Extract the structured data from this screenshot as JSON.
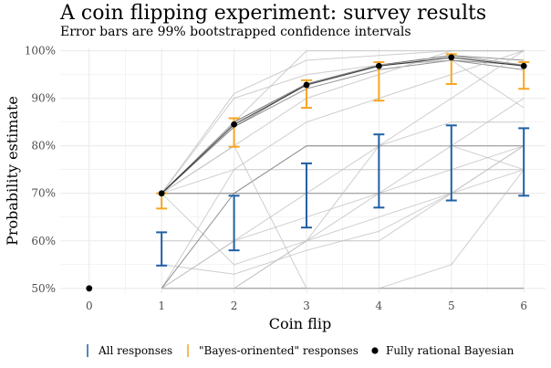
{
  "chart_data": {
    "type": "line",
    "title": "A coin flipping experiment: survey results",
    "subtitle": "Error bars are 99% bootstrapped confidence intervals",
    "xlabel": "Coin flip",
    "ylabel": "Probability estimate",
    "x_ticks": [
      "0",
      "1",
      "2",
      "3",
      "4",
      "5",
      "6"
    ],
    "y_ticks": [
      "50%",
      "60%",
      "70%",
      "80%",
      "90%",
      "100%"
    ],
    "xlim": [
      -0.4,
      6.3
    ],
    "ylim": [
      49,
      100.5
    ],
    "grid": true,
    "legend_position": "bottom",
    "colors": {
      "all_responses": "#1f5fa5",
      "bayes_oriented": "#f5a623",
      "rational": "#000000",
      "individual": "#bdbdbd",
      "individual_dark": "#7f7f7f",
      "grid": "#ebebeb"
    },
    "legend": [
      {
        "label": "All responses",
        "key": "all_responses"
      },
      {
        "label": "\"Bayes-orinented\" responses",
        "key": "bayes_oriented"
      },
      {
        "label": "Fully rational Bayesian",
        "key": "rational"
      }
    ],
    "individual_responses": [
      [
        70,
        85,
        93,
        97,
        99,
        97
      ],
      [
        70,
        84,
        92,
        96,
        98,
        97
      ],
      [
        70,
        85,
        93,
        97,
        99,
        98
      ],
      [
        70,
        84,
        93,
        97,
        98,
        96
      ],
      [
        70,
        91,
        98,
        99,
        100,
        100
      ],
      [
        70,
        90,
        95,
        97,
        98,
        88
      ],
      [
        70,
        80,
        90,
        95,
        100,
        100
      ],
      [
        70,
        85,
        100,
        100,
        100,
        100
      ],
      [
        70,
        70,
        80,
        80,
        85,
        85
      ],
      [
        70,
        70,
        70,
        70,
        70,
        70
      ],
      [
        70,
        75,
        85,
        90,
        95,
        100
      ],
      [
        50,
        60,
        70,
        80,
        90,
        100
      ],
      [
        50,
        50,
        50,
        50,
        50,
        50
      ],
      [
        50,
        75,
        75,
        75,
        75,
        75
      ],
      [
        60,
        60,
        60,
        60,
        70,
        80
      ],
      [
        55,
        53,
        58,
        62,
        70,
        75
      ],
      [
        50,
        50,
        60,
        70,
        75,
        80
      ],
      [
        50,
        60,
        65,
        70,
        80,
        90
      ],
      [
        70,
        55,
        60,
        65,
        70,
        80
      ],
      [
        50,
        70,
        80,
        80,
        80,
        80
      ],
      [
        50,
        50,
        60,
        80,
        80,
        75
      ],
      [
        70,
        80,
        50,
        50,
        55,
        75
      ]
    ],
    "all_responses_ci": [
      {
        "x": 1,
        "low": 54.8,
        "high": 61.8
      },
      {
        "x": 2,
        "low": 58.0,
        "high": 69.5
      },
      {
        "x": 3,
        "low": 62.8,
        "high": 76.3
      },
      {
        "x": 4,
        "low": 67.0,
        "high": 82.4
      },
      {
        "x": 5,
        "low": 68.5,
        "high": 84.3
      },
      {
        "x": 6,
        "low": 69.5,
        "high": 83.7
      }
    ],
    "bayes_oriented_ci": [
      {
        "x": 1,
        "low": 66.8,
        "high": 70.0
      },
      {
        "x": 2,
        "low": 79.8,
        "high": 85.8
      },
      {
        "x": 3,
        "low": 88.0,
        "high": 93.8
      },
      {
        "x": 4,
        "low": 89.5,
        "high": 97.6
      },
      {
        "x": 5,
        "low": 93.0,
        "high": 99.3
      },
      {
        "x": 6,
        "low": 92.0,
        "high": 97.6
      }
    ],
    "fully_rational_bayesian": [
      {
        "x": 0,
        "y": 50.0
      },
      {
        "x": 1,
        "y": 70.0
      },
      {
        "x": 2,
        "y": 84.5
      },
      {
        "x": 3,
        "y": 92.8
      },
      {
        "x": 4,
        "y": 96.8
      },
      {
        "x": 5,
        "y": 98.6
      },
      {
        "x": 6,
        "y": 96.8
      }
    ]
  }
}
